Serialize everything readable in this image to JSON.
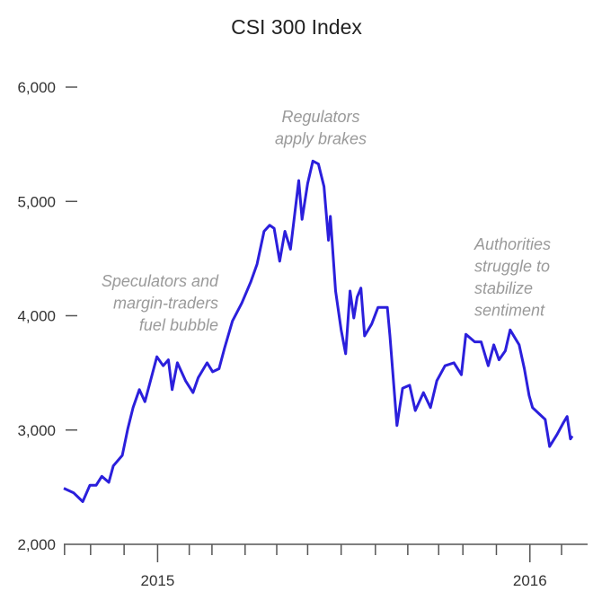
{
  "chart_data": {
    "type": "line",
    "title": "CSI 300 Index",
    "xlabel": "",
    "ylabel": "",
    "xlim": [
      2014.748,
      2016.155
    ],
    "ylim": [
      2000,
      6000
    ],
    "grid": false,
    "y_ticks": [
      {
        "value": 6000,
        "label": "6,000"
      },
      {
        "value": 5000,
        "label": "5,000"
      },
      {
        "value": 4000,
        "label": "4,000"
      },
      {
        "value": 3000,
        "label": "3,000"
      },
      {
        "value": 2000,
        "label": "2,000"
      }
    ],
    "x_tick_labels": [
      {
        "value": 2015.0,
        "label": "2015"
      },
      {
        "value": 2016.0,
        "label": "2016"
      }
    ],
    "x_minor_ticks": [
      2014.75,
      2014.82,
      2014.91,
      2015.0,
      2015.085,
      2015.146,
      2015.235,
      2015.32,
      2015.403,
      2015.493,
      2015.585,
      2015.672,
      2015.755,
      2015.82,
      2015.91,
      2016.0,
      2016.085
    ],
    "series": [
      {
        "name": "CSI 300 Index",
        "color": "#2b1fdc",
        "x": [
          2014.748,
          2014.774,
          2014.799,
          2014.818,
          2014.835,
          2014.85,
          2014.869,
          2014.881,
          2014.905,
          2014.92,
          2014.934,
          2014.951,
          2014.966,
          2014.981,
          2014.998,
          2015.015,
          2015.029,
          2015.039,
          2015.053,
          2015.075,
          2015.095,
          2015.109,
          2015.133,
          2015.148,
          2015.165,
          2015.18,
          2015.201,
          2015.226,
          2015.25,
          2015.267,
          2015.286,
          2015.301,
          2015.313,
          2015.328,
          2015.342,
          2015.357,
          2015.379,
          2015.388,
          2015.403,
          2015.417,
          2015.432,
          2015.447,
          2015.459,
          2015.464,
          2015.478,
          2015.493,
          2015.505,
          2015.517,
          2015.527,
          2015.536,
          2015.546,
          2015.556,
          2015.575,
          2015.592,
          2015.617,
          2015.624,
          2015.643,
          2015.658,
          2015.677,
          2015.692,
          2015.714,
          2015.733,
          2015.75,
          2015.772,
          2015.796,
          2015.816,
          2015.828,
          2015.852,
          2015.869,
          2015.888,
          2015.903,
          2015.917,
          2015.934,
          2015.947,
          2015.971,
          2015.985,
          2015.998,
          2016.007,
          2016.024,
          2016.041,
          2016.053,
          2016.073,
          2016.09,
          2016.1,
          2016.109,
          2016.114
        ],
        "values": [
          2490,
          2451,
          2373,
          2516,
          2516,
          2595,
          2542,
          2686,
          2778,
          3013,
          3196,
          3353,
          3248,
          3431,
          3641,
          3562,
          3614,
          3353,
          3588,
          3431,
          3327,
          3458,
          3588,
          3510,
          3536,
          3719,
          3954,
          4111,
          4294,
          4451,
          4739,
          4791,
          4765,
          4477,
          4739,
          4582,
          5183,
          4843,
          5157,
          5353,
          5327,
          5131,
          4660,
          4869,
          4216,
          3876,
          3667,
          4216,
          3980,
          4163,
          4242,
          3823,
          3928,
          4072,
          4072,
          3823,
          3039,
          3366,
          3392,
          3170,
          3327,
          3196,
          3431,
          3562,
          3588,
          3484,
          3837,
          3771,
          3771,
          3562,
          3745,
          3614,
          3693,
          3876,
          3745,
          3536,
          3301,
          3196,
          3144,
          3092,
          2856,
          2961,
          3065,
          3118,
          2922,
          2948
        ]
      }
    ],
    "annotations": [
      {
        "lines": [
          "Regulators",
          "apply brakes"
        ],
        "near_x": 2015.43
      },
      {
        "lines": [
          "Speculators and",
          "margin-traders",
          "fuel bubble"
        ],
        "near_x": 2015.16
      },
      {
        "lines": [
          "Authorities",
          "struggle to",
          "stabilize",
          "sentiment"
        ],
        "near_x": 2015.85
      }
    ]
  }
}
